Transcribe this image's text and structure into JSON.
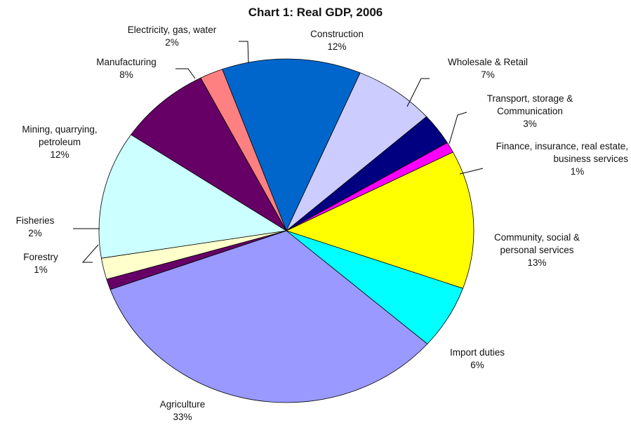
{
  "chart_data": {
    "type": "pie",
    "title": "Chart 1: Real GDP, 2006",
    "slices": [
      {
        "label": "Construction",
        "value": 12,
        "value_label": "12%",
        "color": "#0066cc"
      },
      {
        "label": "Wholesale & Retail",
        "value": 7,
        "value_label": "7%",
        "color": "#ccccff"
      },
      {
        "label": "Transport, storage & Communication",
        "value": 3,
        "value_label": "3%",
        "color": "#000080"
      },
      {
        "label": "Finance, insurance, real estate, business services",
        "value": 1,
        "value_label": "1%",
        "color": "#ff00ff"
      },
      {
        "label": "Community, social & personal services",
        "value": 13,
        "value_label": "13%",
        "color": "#ffff00"
      },
      {
        "label": "Import duties",
        "value": 6,
        "value_label": "6%",
        "color": "#00ffff"
      },
      {
        "label": "Agriculture",
        "value": 33,
        "value_label": "33%",
        "color": "#9999ff"
      },
      {
        "label": "Forestry",
        "value": 1,
        "value_label": "1%",
        "color": "#660066"
      },
      {
        "label": "Fisheries",
        "value": 2,
        "value_label": "2%",
        "color": "#ffffcc"
      },
      {
        "label": "Mining, quarrying, petroleum",
        "value": 12,
        "value_label": "12%",
        "color": "#ccffff"
      },
      {
        "label": "Manufacturing",
        "value": 8,
        "value_label": "8%",
        "color": "#660066"
      },
      {
        "label": "Electricity, gas, water",
        "value": 2,
        "value_label": "2%",
        "color": "#ff8080"
      }
    ]
  }
}
